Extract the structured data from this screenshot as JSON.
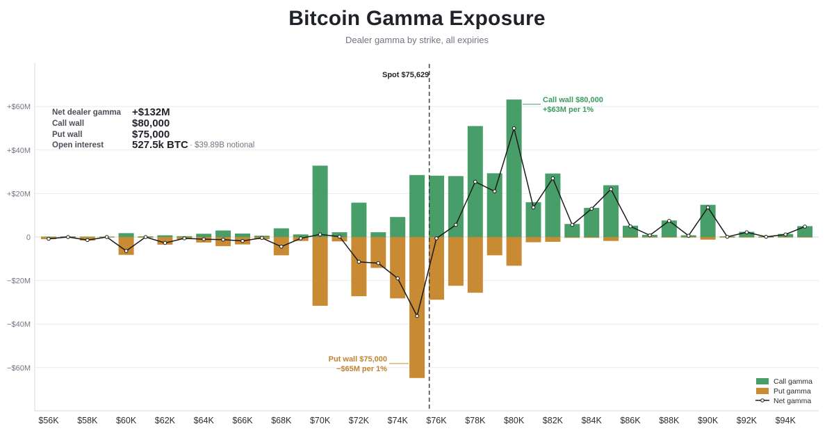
{
  "header": {
    "title": "Bitcoin Gamma Exposure",
    "subtitle": "Dealer gamma by strike, all expiries"
  },
  "stats": [
    {
      "label": "Net dealer gamma",
      "value": "+$132M",
      "note": ""
    },
    {
      "label": "Call wall",
      "value": "$80,000",
      "note": ""
    },
    {
      "label": "Put wall",
      "value": "$75,000",
      "note": ""
    },
    {
      "label": "Open interest",
      "value": "527.5k BTC",
      "note": "· $39.89B notional"
    }
  ],
  "annotations": {
    "spot": "Spot $75,629",
    "call_wall_line1": "Call wall $80,000",
    "call_wall_line2": "+$63M per 1%",
    "put_wall_line1": "Put wall $75,000",
    "put_wall_line2": "−$65M per 1%"
  },
  "legend": {
    "call": "Call gamma",
    "put": "Put gamma",
    "net": "Net gamma"
  },
  "colors": {
    "call": "#479e68",
    "put": "#c88a33",
    "net": "#1a1a1a",
    "grid": "#e8eaee"
  },
  "chart_data": {
    "type": "bar",
    "title": "Bitcoin Gamma Exposure",
    "subtitle": "Dealer gamma by strike, all expiries",
    "x_unit": "strike (USD)",
    "y_unit": "USD millions",
    "x": [
      56000,
      57000,
      58000,
      59000,
      60000,
      61000,
      62000,
      63000,
      64000,
      65000,
      66000,
      67000,
      68000,
      69000,
      70000,
      71000,
      72000,
      73000,
      74000,
      75000,
      76000,
      77000,
      78000,
      79000,
      80000,
      81000,
      82000,
      83000,
      84000,
      85000,
      86000,
      87000,
      88000,
      89000,
      90000,
      91000,
      92000,
      93000,
      94000,
      95000
    ],
    "x_tick_values": [
      56000,
      58000,
      60000,
      62000,
      64000,
      66000,
      68000,
      70000,
      72000,
      74000,
      76000,
      78000,
      80000,
      82000,
      84000,
      86000,
      88000,
      90000,
      92000,
      94000
    ],
    "x_tick_labels": [
      "$56K",
      "$58K",
      "$60K",
      "$62K",
      "$64K",
      "$66K",
      "$68K",
      "$70K",
      "$72K",
      "$74K",
      "$76K",
      "$78K",
      "$80K",
      "$82K",
      "$84K",
      "$86K",
      "$88K",
      "$90K",
      "$92K",
      "$94K"
    ],
    "y_ticks": [
      -60,
      -40,
      -20,
      0,
      20,
      40,
      60
    ],
    "y_tick_labels": [
      "−$60M",
      "−$40M",
      "−$20M",
      "0",
      "+$20M",
      "+$40M",
      "+$60M"
    ],
    "ylim": [
      -80,
      80
    ],
    "spot": 75629,
    "series": [
      {
        "name": "Call gamma",
        "type": "bar",
        "values": [
          0.2,
          0.3,
          0.2,
          0.2,
          1.8,
          0.3,
          0.8,
          0.4,
          1.5,
          3.0,
          1.6,
          0.6,
          4.0,
          1.2,
          32.8,
          2.2,
          15.8,
          2.2,
          9.2,
          28.5,
          28.2,
          28.0,
          51.0,
          29.3,
          63.2,
          16.0,
          29.2,
          6.0,
          13.4,
          23.8,
          5.2,
          1.0,
          7.6,
          0.8,
          14.8,
          0.3,
          2.4,
          0.3,
          1.4,
          5.0
        ]
      },
      {
        "name": "Put gamma",
        "type": "bar",
        "values": [
          -1.0,
          -0.3,
          -1.6,
          -0.2,
          -8.2,
          -0.3,
          -3.5,
          -1.0,
          -2.5,
          -4.2,
          -3.4,
          -1.0,
          -8.4,
          -1.8,
          -31.6,
          -2.0,
          -27.2,
          -14.2,
          -28.2,
          -64.8,
          -28.8,
          -22.4,
          -25.6,
          -8.4,
          -13.2,
          -2.4,
          -2.2,
          -0.4,
          -0.4,
          -1.8,
          -0.3,
          -0.2,
          -0.2,
          -0.2,
          -1.2,
          -0.2,
          -0.2,
          -0.2,
          -0.2,
          -0.2
        ]
      },
      {
        "name": "Net gamma",
        "type": "line",
        "values": [
          -0.8,
          0.0,
          -1.4,
          0.0,
          -6.4,
          0.0,
          -2.7,
          -0.6,
          -1.0,
          -1.2,
          -1.8,
          -0.4,
          -4.4,
          -0.6,
          1.2,
          0.2,
          -11.4,
          -12.0,
          -19.0,
          -36.3,
          -0.6,
          5.6,
          25.4,
          21.0,
          50.0,
          13.6,
          27.0,
          5.6,
          13.0,
          22.0,
          4.9,
          0.8,
          7.4,
          0.6,
          13.6,
          0.1,
          2.2,
          0.1,
          1.2,
          4.8
        ]
      }
    ]
  }
}
